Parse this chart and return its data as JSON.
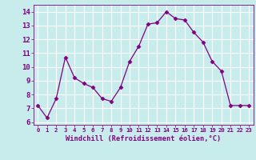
{
  "x": [
    0,
    1,
    2,
    3,
    4,
    5,
    6,
    7,
    8,
    9,
    10,
    11,
    12,
    13,
    14,
    15,
    16,
    17,
    18,
    19,
    20,
    21,
    22,
    23
  ],
  "y": [
    7.2,
    6.3,
    7.7,
    10.7,
    9.2,
    8.8,
    8.5,
    7.7,
    7.5,
    8.5,
    10.4,
    11.5,
    13.1,
    13.2,
    14.0,
    13.5,
    13.4,
    12.5,
    11.8,
    10.4,
    9.7,
    7.2,
    7.2,
    7.2
  ],
  "line_color": "#800080",
  "marker": "D",
  "marker_size": 2.5,
  "bg_color": "#c8ecec",
  "grid_color": "#ffffff",
  "xlabel": "Windchill (Refroidissement éolien,°C)",
  "xlabel_color": "#800080",
  "tick_color": "#800080",
  "xlim": [
    -0.5,
    23.5
  ],
  "ylim": [
    5.8,
    14.5
  ],
  "yticks": [
    6,
    7,
    8,
    9,
    10,
    11,
    12,
    13,
    14
  ],
  "xticks": [
    0,
    1,
    2,
    3,
    4,
    5,
    6,
    7,
    8,
    9,
    10,
    11,
    12,
    13,
    14,
    15,
    16,
    17,
    18,
    19,
    20,
    21,
    22,
    23
  ],
  "xtick_fontsize": 5.2,
  "ytick_fontsize": 6.5,
  "xlabel_fontsize": 6.2
}
